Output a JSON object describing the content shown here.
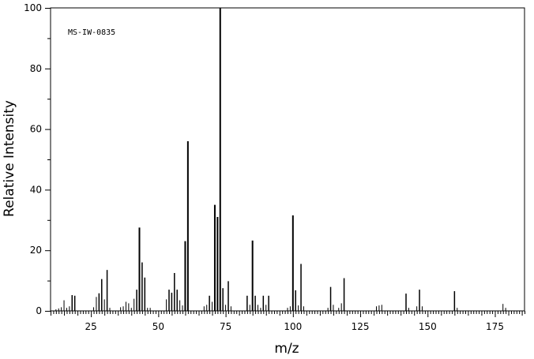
{
  "chart_data": {
    "type": "bar",
    "title": "",
    "annotation": "MS-IW-0835",
    "xlabel": "m/z",
    "ylabel": "Relative Intensity",
    "xlim": [
      10,
      186
    ],
    "ylim": [
      0,
      100
    ],
    "x_major_ticks": [
      25,
      50,
      75,
      100,
      125,
      150,
      175
    ],
    "x_minor_step": 5,
    "y_major_ticks": [
      0,
      20,
      40,
      60,
      80,
      100
    ],
    "y_minor_step": 10,
    "grid": false,
    "legend": "none",
    "series": [
      {
        "x": [
          12,
          13,
          14,
          15,
          16,
          17,
          18,
          19,
          26,
          27,
          28,
          29,
          30,
          31,
          32,
          36,
          37,
          38,
          39,
          40,
          41,
          42,
          43,
          44,
          45,
          46,
          47,
          53,
          54,
          55,
          56,
          57,
          58,
          59,
          60,
          61,
          67,
          68,
          69,
          70,
          71,
          72,
          73,
          74,
          75,
          76,
          77,
          83,
          84,
          85,
          86,
          87,
          88,
          89,
          90,
          91,
          98,
          99,
          100,
          101,
          102,
          103,
          104,
          113,
          114,
          115,
          117,
          118,
          119,
          131,
          132,
          133,
          142,
          143,
          146,
          147,
          148,
          160,
          161,
          178,
          179
        ],
        "values": [
          0.5,
          0.8,
          1.2,
          3.5,
          1.0,
          1.5,
          5.2,
          5.0,
          1.2,
          4.6,
          5.8,
          10.5,
          3.8,
          13.5,
          1.0,
          1.2,
          1.5,
          3.0,
          2.5,
          1.0,
          4.0,
          7.0,
          27.5,
          16.0,
          11.0,
          1.0,
          1.0,
          3.8,
          7.0,
          6.0,
          12.5,
          7.0,
          3.5,
          1.8,
          23.0,
          56.0,
          1.5,
          2.0,
          5.0,
          3.0,
          35.0,
          31.0,
          100.0,
          7.5,
          2.0,
          9.8,
          1.5,
          5.0,
          2.0,
          23.2,
          5.0,
          2.0,
          1.0,
          5.0,
          2.0,
          5.0,
          1.0,
          1.5,
          31.5,
          6.8,
          1.8,
          15.5,
          1.5,
          1.0,
          7.9,
          2.0,
          1.0,
          2.5,
          10.8,
          1.5,
          1.8,
          2.0,
          5.7,
          1.0,
          1.5,
          7.0,
          1.5,
          6.5,
          1.0,
          2.3,
          1.0
        ]
      }
    ]
  }
}
